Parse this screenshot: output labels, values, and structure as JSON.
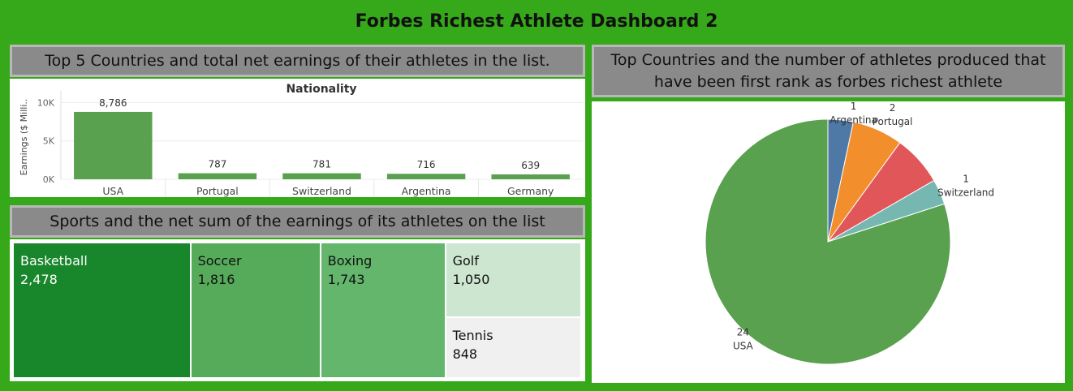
{
  "dashboard": {
    "title": "Forbes Richest Athlete Dashboard 2"
  },
  "bar_panel": {
    "header": "Top 5 Countries and total net earnings of their athletes in the list."
  },
  "treemap_panel": {
    "header": "Sports and the net sum of the earnings of its athletes on the list"
  },
  "pie_panel": {
    "header": "Top Countries and the number of athletes produced that have been first rank as forbes richest athlete"
  },
  "colors": {
    "background": "#35a919",
    "bar": "#59a14f",
    "header_box": "#8a8a8a"
  },
  "chart_data": [
    {
      "type": "bar",
      "title": "Nationality",
      "ylabel": "Earnings ($ Milli..",
      "xlabel": "",
      "categories": [
        "USA",
        "Portugal",
        "Switzerland",
        "Argentina",
        "Germany"
      ],
      "values": [
        8786,
        787,
        781,
        716,
        639
      ],
      "value_labels": [
        "8,786",
        "787",
        "781",
        "716",
        "639"
      ],
      "yticks": [
        0,
        5000,
        10000
      ],
      "ytick_labels": [
        "0K",
        "5K",
        "10K"
      ],
      "ylim": [
        0,
        11000
      ],
      "grid": true,
      "color": "#59a14f"
    },
    {
      "type": "treemap",
      "items": [
        {
          "label": "Basketball",
          "value": 2478,
          "value_label": "2,478",
          "color": "#18862b",
          "text_color": "#ffffff"
        },
        {
          "label": "Soccer",
          "value": 1816,
          "value_label": "1,816",
          "color": "#56ab5a",
          "text_color": "#111111"
        },
        {
          "label": "Boxing",
          "value": 1743,
          "value_label": "1,743",
          "color": "#63b66c",
          "text_color": "#111111"
        },
        {
          "label": "Golf",
          "value": 1050,
          "value_label": "1,050",
          "color": "#cde6d0",
          "text_color": "#111111"
        },
        {
          "label": "Tennis",
          "value": 848,
          "value_label": "848",
          "color": "#f0f0f0",
          "text_color": "#111111"
        }
      ]
    },
    {
      "type": "pie",
      "slices": [
        {
          "label": "Argentina",
          "value": 1,
          "color": "#4e79a7"
        },
        {
          "label": "Portugal",
          "value": 2,
          "color": "#f28e2b"
        },
        {
          "label": "",
          "value": 2,
          "color": "#e15759"
        },
        {
          "label": "Switzerland",
          "value": 1,
          "color": "#76b7b2"
        },
        {
          "label": "USA",
          "value": 24,
          "color": "#59a14f"
        }
      ],
      "visible_labels": [
        {
          "count": "1",
          "name": "Argentina"
        },
        {
          "count": "2",
          "name": "Portugal"
        },
        {
          "count": "1",
          "name": "Switzerland"
        },
        {
          "count": "24",
          "name": "USA"
        }
      ]
    }
  ]
}
